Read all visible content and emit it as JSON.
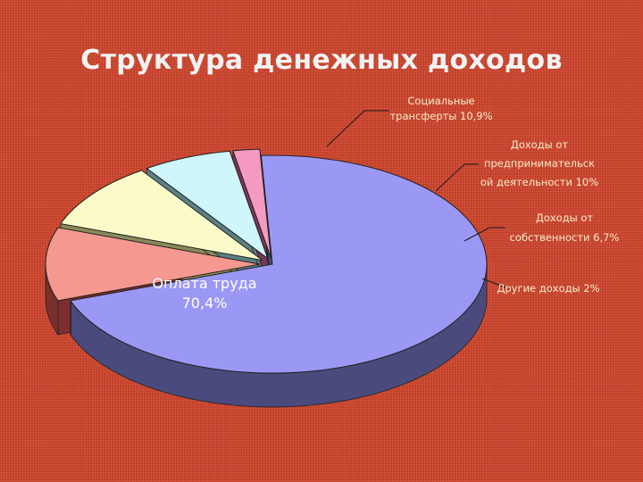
{
  "slide": {
    "title": "Структура денежных доходов"
  },
  "chart_data": {
    "type": "pie",
    "title": "Структура денежных доходов",
    "three_d": true,
    "exploded": true,
    "legend": "none",
    "slices": [
      {
        "name": "Оплата труда",
        "value": 70.4,
        "label_lines": [
          "Оплата труда",
          "70,4%"
        ],
        "color": "#9b98f5",
        "side_color": "#4a4a7c"
      },
      {
        "name": "Социальные трансферты",
        "value": 10.9,
        "label_lines": [
          "Социальные",
          "трансферты 10,9%"
        ],
        "color": "#f59890",
        "side_color": "#7c2e2c"
      },
      {
        "name": "Доходы от предпринимательской деятельности",
        "value": 10,
        "label_lines": [
          "Доходы от",
          "предпринимательск",
          "ой деятельности 10%"
        ],
        "color": "#fbfbc9",
        "side_color": "#8a8a58"
      },
      {
        "name": "Доходы от собственности",
        "value": 6.7,
        "label_lines": [
          "Доходы от",
          "собственности 6,7%"
        ],
        "color": "#cef6fb",
        "side_color": "#5c8084"
      },
      {
        "name": "Другие доходы",
        "value": 2,
        "label_lines": [
          "Другие доходы 2%"
        ],
        "color": "#f59ac2",
        "side_color": "#7a3658"
      }
    ]
  }
}
